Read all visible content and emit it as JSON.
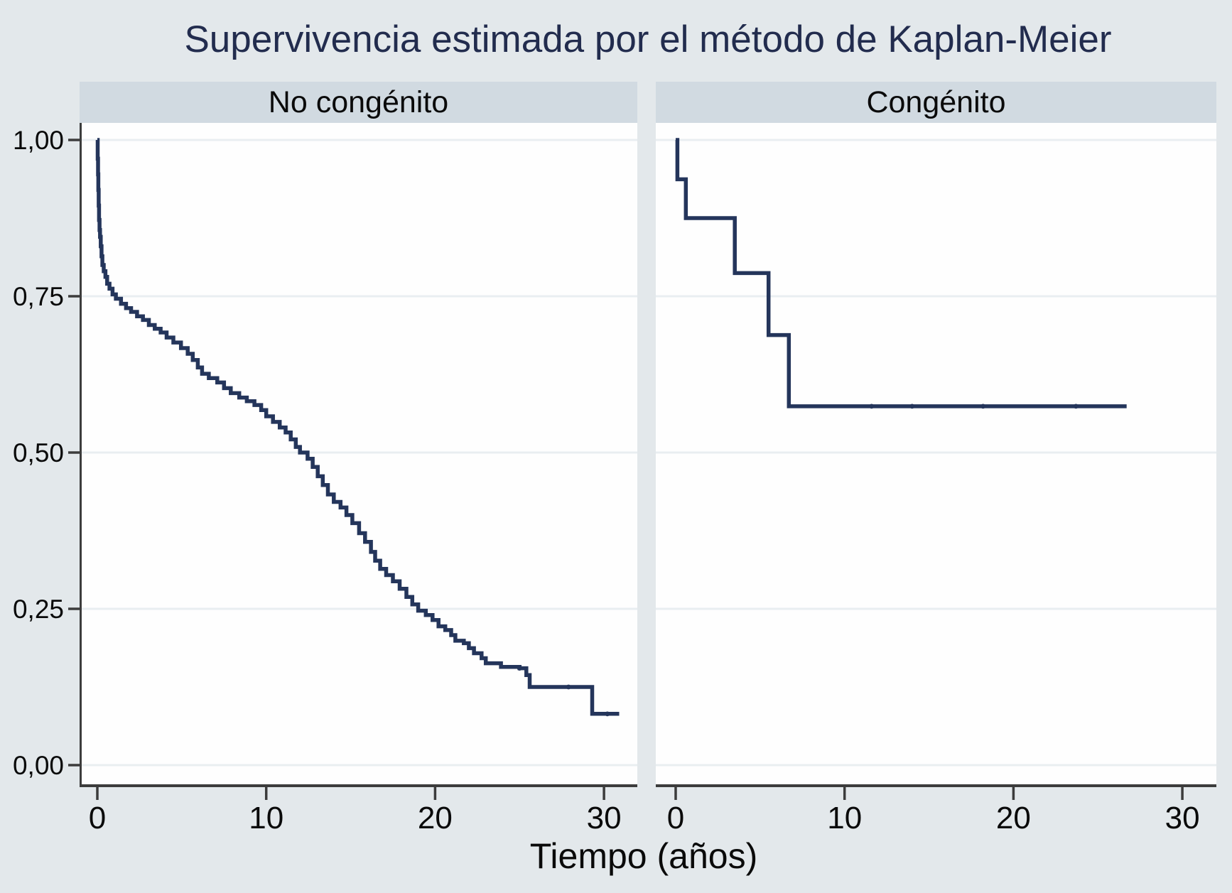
{
  "title": "Supervivencia estimada por el método de Kaplan-Meier",
  "colors": {
    "figure_bg": "#e3e8eb",
    "panel_band": "#d1dae1",
    "plot_bg": "#fefefe",
    "gridline": "#e9eef1",
    "axis": "#3c3c3c",
    "tick_text": "#0a0a0a",
    "curve": "#24355b",
    "title_text": "#222c4e",
    "xlabel_text": "#0a0a0a"
  },
  "chart_data": {
    "type": "line",
    "subtype": "kaplan-meier-step",
    "title": "Supervivencia estimada por el método de Kaplan-Meier",
    "xlabel": "Tiempo (años)",
    "ylabel": "",
    "xlim": [
      0,
      32
    ],
    "ylim": [
      0,
      1
    ],
    "grid": "horizontal",
    "legend": "none",
    "yticks": [
      {
        "v": 1.0,
        "label": "1,00"
      },
      {
        "v": 0.75,
        "label": "0,75"
      },
      {
        "v": 0.5,
        "label": "0,50"
      },
      {
        "v": 0.25,
        "label": "0,25"
      },
      {
        "v": 0.0,
        "label": "0,00"
      }
    ],
    "xticks": [
      {
        "v": 0,
        "label": "0"
      },
      {
        "v": 10,
        "label": "10"
      },
      {
        "v": 20,
        "label": "20"
      },
      {
        "v": 30,
        "label": "30"
      }
    ],
    "panels": [
      {
        "label": "No congénito",
        "steps": [
          [
            0,
            1.0
          ],
          [
            0.02,
            0.97
          ],
          [
            0.04,
            0.945
          ],
          [
            0.06,
            0.92
          ],
          [
            0.08,
            0.895
          ],
          [
            0.1,
            0.872
          ],
          [
            0.13,
            0.856
          ],
          [
            0.16,
            0.845
          ],
          [
            0.2,
            0.83
          ],
          [
            0.25,
            0.814
          ],
          [
            0.3,
            0.8
          ],
          [
            0.38,
            0.79
          ],
          [
            0.48,
            0.781
          ],
          [
            0.58,
            0.77
          ],
          [
            0.72,
            0.762
          ],
          [
            0.9,
            0.753
          ],
          [
            1.1,
            0.746
          ],
          [
            1.4,
            0.738
          ],
          [
            1.7,
            0.731
          ],
          [
            2.0,
            0.725
          ],
          [
            2.35,
            0.718
          ],
          [
            2.7,
            0.712
          ],
          [
            3.05,
            0.704
          ],
          [
            3.4,
            0.698
          ],
          [
            3.75,
            0.692
          ],
          [
            4.1,
            0.684
          ],
          [
            4.5,
            0.676
          ],
          [
            4.95,
            0.667
          ],
          [
            5.35,
            0.658
          ],
          [
            5.65,
            0.648
          ],
          [
            5.95,
            0.636
          ],
          [
            6.2,
            0.626
          ],
          [
            6.6,
            0.619
          ],
          [
            7.1,
            0.612
          ],
          [
            7.5,
            0.603
          ],
          [
            7.9,
            0.595
          ],
          [
            8.4,
            0.588
          ],
          [
            8.85,
            0.582
          ],
          [
            9.3,
            0.576
          ],
          [
            9.7,
            0.568
          ],
          [
            10.0,
            0.558
          ],
          [
            10.4,
            0.549
          ],
          [
            10.8,
            0.54
          ],
          [
            11.15,
            0.532
          ],
          [
            11.45,
            0.521
          ],
          [
            11.75,
            0.509
          ],
          [
            12.0,
            0.5
          ],
          [
            12.45,
            0.49
          ],
          [
            12.75,
            0.477
          ],
          [
            13.05,
            0.462
          ],
          [
            13.35,
            0.448
          ],
          [
            13.65,
            0.433
          ],
          [
            14.0,
            0.421
          ],
          [
            14.4,
            0.412
          ],
          [
            14.75,
            0.4
          ],
          [
            15.1,
            0.387
          ],
          [
            15.5,
            0.371
          ],
          [
            15.85,
            0.357
          ],
          [
            16.2,
            0.341
          ],
          [
            16.45,
            0.327
          ],
          [
            16.75,
            0.314
          ],
          [
            17.1,
            0.304
          ],
          [
            17.5,
            0.294
          ],
          [
            17.9,
            0.282
          ],
          [
            18.3,
            0.269
          ],
          [
            18.65,
            0.257
          ],
          [
            19.0,
            0.247
          ],
          [
            19.45,
            0.24
          ],
          [
            19.85,
            0.232
          ],
          [
            20.2,
            0.222
          ],
          [
            20.6,
            0.216
          ],
          [
            20.95,
            0.208
          ],
          [
            21.2,
            0.199
          ],
          [
            21.7,
            0.195
          ],
          [
            22.0,
            0.187
          ],
          [
            22.3,
            0.179
          ],
          [
            22.75,
            0.171
          ],
          [
            23.0,
            0.163
          ],
          [
            23.9,
            0.157
          ],
          [
            25.0,
            0.155
          ],
          [
            25.4,
            0.144
          ],
          [
            25.6,
            0.125
          ],
          [
            29.3,
            0.082
          ]
        ],
        "end_t": 30.9,
        "censor_marks": [
          [
            25.0,
            0.155
          ],
          [
            27.9,
            0.125
          ],
          [
            30.2,
            0.082
          ]
        ]
      },
      {
        "label": "Congénito",
        "steps": [
          [
            0,
            1.0
          ],
          [
            0.1,
            0.937
          ],
          [
            0.6,
            0.875
          ],
          [
            3.5,
            0.787
          ],
          [
            5.5,
            0.688
          ],
          [
            6.7,
            0.574
          ]
        ],
        "end_t": 26.7,
        "censor_marks": [
          [
            11.6,
            0.574
          ],
          [
            14.0,
            0.574
          ],
          [
            18.2,
            0.574
          ],
          [
            23.7,
            0.574
          ]
        ]
      }
    ]
  }
}
